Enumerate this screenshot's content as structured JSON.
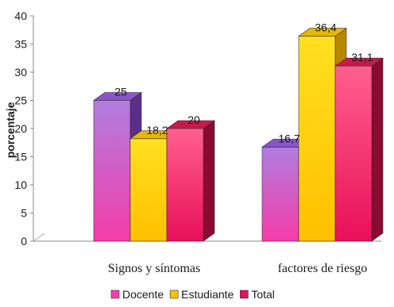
{
  "chart_data": {
    "type": "bar",
    "title": "",
    "ylabel": "porcentaje",
    "xlabel": "",
    "ylim": [
      0,
      40
    ],
    "yticks": [
      "0",
      "5",
      "10",
      "15",
      "20",
      "25",
      "30",
      "35",
      "40"
    ],
    "categories": [
      "Signos y síntomas",
      "factores de riesgo"
    ],
    "series": [
      {
        "name": "Docente",
        "values": [
          25,
          16.7
        ],
        "labels": [
          "25",
          "16,7"
        ]
      },
      {
        "name": "Estudiante",
        "values": [
          18.2,
          36.4
        ],
        "labels": [
          "18,2",
          "36,4"
        ]
      },
      {
        "name": "Total",
        "values": [
          20,
          31.1
        ],
        "labels": [
          "20",
          "31,1"
        ]
      }
    ],
    "legend_position": "bottom",
    "grid": false,
    "three_d": true
  },
  "colors": {
    "Docente": {
      "top": "#b07ee0",
      "bottom": "#f53ca8",
      "side": "#5a2f8a",
      "cap": "#8a55c9"
    },
    "Estudiante": {
      "top": "#ffe020",
      "bottom": "#ffc000",
      "side": "#b88800",
      "cap": "#e6b800"
    },
    "Total": {
      "top": "#ff5f8f",
      "bottom": "#e8105a",
      "side": "#8a0a30",
      "cap": "#c81a4a"
    }
  }
}
